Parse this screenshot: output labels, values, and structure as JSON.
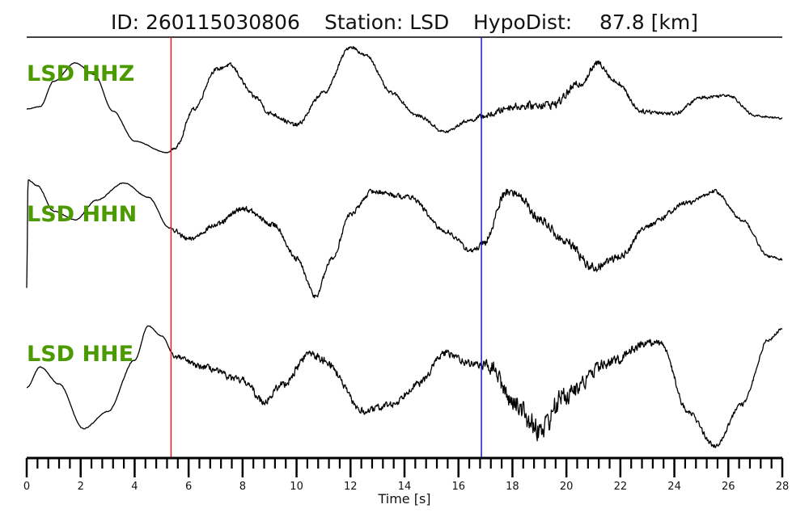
{
  "header": {
    "id_label": "ID: 260115030806",
    "station_label": "Station: LSD",
    "dist_label": "HypoDist:",
    "dist_value": "87.8 [km]"
  },
  "chart_data": {
    "type": "line",
    "xlabel": "Time [s]",
    "xlim": [
      0,
      28
    ],
    "xticks": [
      0,
      2,
      4,
      6,
      8,
      10,
      12,
      14,
      16,
      18,
      20,
      22,
      24,
      26,
      28
    ],
    "minor_tick_step": 0.4,
    "grid": false,
    "label_color": "#4a9a00",
    "trace_color": "#000000",
    "p_pick": {
      "time": 5.35,
      "color": "#e02020"
    },
    "s_pick": {
      "time": 16.85,
      "color": "#1a1ad0"
    },
    "series": [
      {
        "name": "LSD HHZ",
        "keypoints": [
          [
            0,
            -0.05
          ],
          [
            0.5,
            0.0
          ],
          [
            1.0,
            0.55
          ],
          [
            1.8,
            0.95
          ],
          [
            2.5,
            0.7
          ],
          [
            3.2,
            -0.1
          ],
          [
            4.0,
            -0.75
          ],
          [
            5.2,
            -1.0
          ],
          [
            5.5,
            -0.9
          ],
          [
            6.2,
            -0.05
          ],
          [
            7.0,
            0.8
          ],
          [
            7.5,
            0.9
          ],
          [
            8.5,
            0.2
          ],
          [
            9.0,
            -0.15
          ],
          [
            10.0,
            -0.4
          ],
          [
            11.0,
            0.3
          ],
          [
            12.0,
            1.3
          ],
          [
            12.6,
            1.1
          ],
          [
            13.5,
            0.3
          ],
          [
            14.5,
            -0.2
          ],
          [
            15.5,
            -0.55
          ],
          [
            16.4,
            -0.3
          ],
          [
            17.0,
            -0.2
          ],
          [
            18.0,
            0.0
          ],
          [
            19.5,
            0.05
          ],
          [
            20.5,
            0.5
          ],
          [
            21.2,
            0.95
          ],
          [
            21.8,
            0.55
          ],
          [
            22.8,
            -0.1
          ],
          [
            24.0,
            -0.15
          ],
          [
            25.0,
            0.2
          ],
          [
            26.0,
            0.25
          ],
          [
            27.0,
            -0.2
          ],
          [
            28,
            -0.25
          ]
        ],
        "noise": [
          [
            0,
            0.008
          ],
          [
            5.3,
            0.01
          ],
          [
            5.5,
            0.05
          ],
          [
            9.0,
            0.07
          ],
          [
            12.5,
            0.05
          ],
          [
            16.5,
            0.05
          ],
          [
            17.0,
            0.09
          ],
          [
            19.5,
            0.13
          ],
          [
            22.5,
            0.07
          ],
          [
            28,
            0.03
          ]
        ]
      },
      {
        "name": "LSD HHN",
        "keypoints": [
          [
            0,
            -1.1
          ],
          [
            0.05,
            0.8
          ],
          [
            0.4,
            0.7
          ],
          [
            1.0,
            0.25
          ],
          [
            1.8,
            0.1
          ],
          [
            2.6,
            0.45
          ],
          [
            3.6,
            0.75
          ],
          [
            4.5,
            0.5
          ],
          [
            5.3,
            -0.05
          ],
          [
            6.0,
            -0.25
          ],
          [
            7.0,
            0.0
          ],
          [
            8.0,
            0.3
          ],
          [
            9.2,
            0.0
          ],
          [
            10.0,
            -0.6
          ],
          [
            10.7,
            -1.25
          ],
          [
            11.3,
            -0.6
          ],
          [
            12.0,
            0.2
          ],
          [
            12.8,
            0.6
          ],
          [
            14.2,
            0.5
          ],
          [
            15.5,
            -0.1
          ],
          [
            16.5,
            -0.45
          ],
          [
            16.9,
            -0.35
          ],
          [
            17.8,
            0.6
          ],
          [
            18.2,
            0.55
          ],
          [
            19.0,
            0.1
          ],
          [
            20.0,
            -0.3
          ],
          [
            21.0,
            -0.75
          ],
          [
            22.0,
            -0.55
          ],
          [
            23.0,
            0.0
          ],
          [
            24.5,
            0.4
          ],
          [
            25.5,
            0.6
          ],
          [
            26.5,
            0.1
          ],
          [
            27.5,
            -0.55
          ],
          [
            28,
            -0.6
          ]
        ],
        "noise": [
          [
            0,
            0.01
          ],
          [
            5.3,
            0.01
          ],
          [
            5.5,
            0.06
          ],
          [
            9.0,
            0.07
          ],
          [
            12.0,
            0.06
          ],
          [
            16.5,
            0.06
          ],
          [
            17.0,
            0.1
          ],
          [
            20.5,
            0.12
          ],
          [
            23.0,
            0.07
          ],
          [
            28,
            0.03
          ]
        ]
      },
      {
        "name": "LSD HHE",
        "keypoints": [
          [
            0,
            -0.35
          ],
          [
            0.5,
            -0.05
          ],
          [
            1.2,
            -0.3
          ],
          [
            2.1,
            -0.95
          ],
          [
            3.0,
            -0.7
          ],
          [
            4.0,
            0.05
          ],
          [
            4.5,
            0.55
          ],
          [
            5.0,
            0.4
          ],
          [
            5.5,
            0.1
          ],
          [
            6.5,
            -0.05
          ],
          [
            8.0,
            -0.25
          ],
          [
            8.8,
            -0.55
          ],
          [
            9.5,
            -0.3
          ],
          [
            10.5,
            0.15
          ],
          [
            11.0,
            0.05
          ],
          [
            12.5,
            -0.7
          ],
          [
            13.5,
            -0.6
          ],
          [
            14.5,
            -0.3
          ],
          [
            15.5,
            0.15
          ],
          [
            16.5,
            0.0
          ],
          [
            17.2,
            -0.05
          ],
          [
            18.0,
            -0.55
          ],
          [
            19.0,
            -0.95
          ],
          [
            20.0,
            -0.45
          ],
          [
            21.5,
            0.0
          ],
          [
            23.0,
            0.3
          ],
          [
            23.5,
            0.3
          ],
          [
            24.5,
            -0.7
          ],
          [
            25.5,
            -1.2
          ],
          [
            26.5,
            -0.6
          ],
          [
            27.5,
            0.35
          ],
          [
            28,
            0.5
          ]
        ],
        "noise": [
          [
            0,
            0.008
          ],
          [
            5.3,
            0.008
          ],
          [
            5.5,
            0.05
          ],
          [
            9.0,
            0.08
          ],
          [
            13.0,
            0.07
          ],
          [
            16.8,
            0.07
          ],
          [
            17.2,
            0.14
          ],
          [
            19.3,
            0.25
          ],
          [
            21.0,
            0.12
          ],
          [
            24.0,
            0.06
          ],
          [
            28,
            0.03
          ]
        ]
      }
    ]
  }
}
